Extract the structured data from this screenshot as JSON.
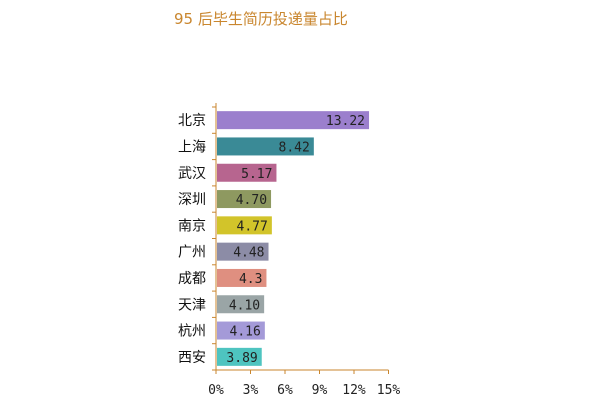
{
  "chart_data": {
    "type": "bar",
    "orientation": "horizontal",
    "title": "95 后毕生简历投递量占比",
    "categories": [
      "北京",
      "上海",
      "武汉",
      "深圳",
      "南京",
      "广州",
      "成都",
      "天津",
      "杭州",
      "西安"
    ],
    "values": [
      13.22,
      8.42,
      5.17,
      4.7,
      4.77,
      4.48,
      4.3,
      4.1,
      4.16,
      3.89
    ],
    "value_labels": [
      "13.22",
      "8.42",
      "5.17",
      "4.70",
      "4.77",
      "4.48",
      "4.3",
      "4.10",
      "4.16",
      "3.89"
    ],
    "colors": [
      "#9b7fcd",
      "#3a8a96",
      "#b7658f",
      "#8e9960",
      "#d2c42a",
      "#8c8ca6",
      "#df8f80",
      "#9aa5a6",
      "#a49ad8",
      "#4ec4c0"
    ],
    "xlim": [
      0,
      15
    ],
    "xticks": [
      0,
      3,
      6,
      9,
      12,
      15
    ],
    "xtick_labels": [
      "0%",
      "3%",
      "6%",
      "9%",
      "12%",
      "15%"
    ],
    "axis_color": "#c9862e",
    "title_color": "#c9862e",
    "grid": false,
    "legend": "none"
  }
}
